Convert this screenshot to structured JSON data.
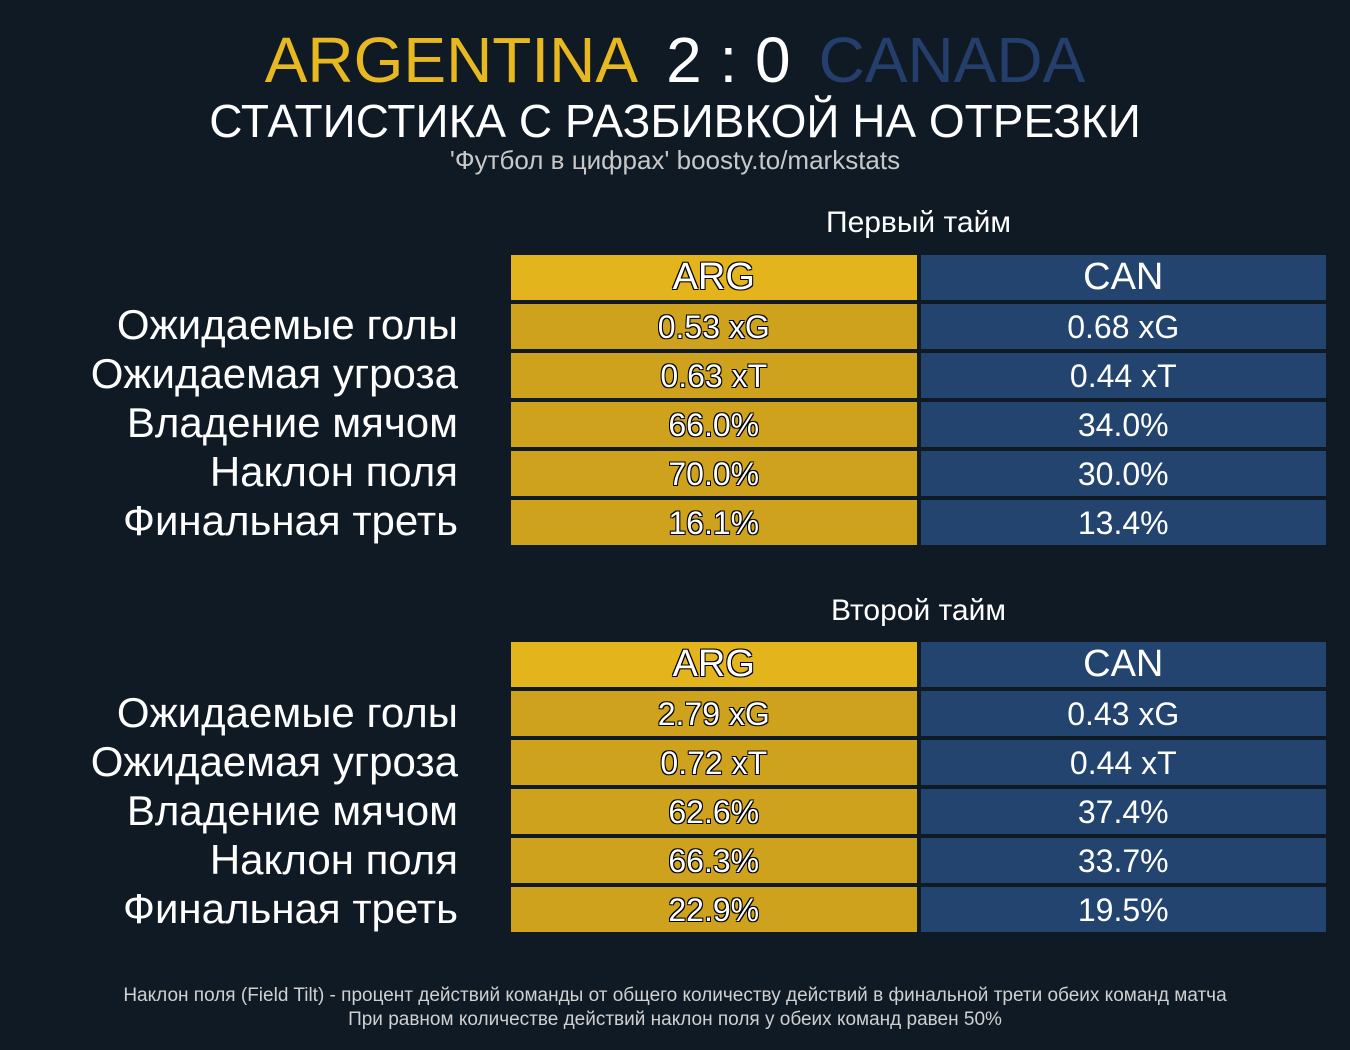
{
  "header": {
    "home_team": "ARGENTINA",
    "score": "2 : 0",
    "away_team": "CANADA",
    "subtitle": "СТАТИСТИКА С РАЗБИВКОЙ НА ОТРЕЗКИ",
    "credit": "'Футбол в цифрах' boosty.to/markstats"
  },
  "colors": {
    "home": "#e3b41c",
    "away": "#22446f",
    "background": "#0f1a25"
  },
  "chart_data": {
    "type": "table",
    "columns": [
      "ARG",
      "CAN"
    ],
    "metrics": [
      "Ожидаемые голы",
      "Ожидаемая угроза",
      "Владение мячом",
      "Наклон поля",
      "Финальная треть"
    ],
    "halves": [
      {
        "title": "Первый тайм",
        "home_values": [
          "0.53 xG",
          "0.63 xT",
          "66.0%",
          "70.0%",
          "16.1%"
        ],
        "away_values": [
          "0.68 xG",
          "0.44 xT",
          "34.0%",
          "30.0%",
          "13.4%"
        ]
      },
      {
        "title": "Второй тайм",
        "home_values": [
          "2.79 xG",
          "0.72 xT",
          "62.6%",
          "66.3%",
          "22.9%"
        ],
        "away_values": [
          "0.43 xG",
          "0.44 xT",
          "37.4%",
          "33.7%",
          "19.5%"
        ]
      }
    ]
  },
  "footnotes": [
    "Наклон поля (Field Tilt) - процент действий команды от общего количеству действий в финальной трети обеих команд матча",
    "При равном количестве действий наклон поля у обеих команд равен 50%"
  ]
}
